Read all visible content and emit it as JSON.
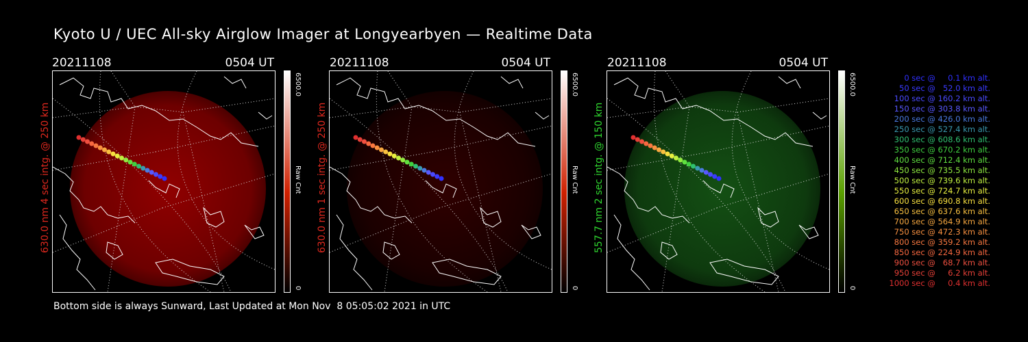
{
  "title": "Kyoto U / UEC All-sky Airglow Imager at Longyearbyen — Realtime Data",
  "footer": "Bottom side is always Sunward, Last Updated at Mon Nov  8 05:05:02 2021 in UTC",
  "panels": [
    {
      "date": "20211108",
      "time": "0504 UT",
      "side_label": "630.0 nm 4 sec intg. @ 250 km",
      "label_color": "#e0281e",
      "colorbar_max": "6500.0",
      "colorbar_min": "0",
      "colorbar_unit": "Raw Cnt",
      "tint": "#b00000",
      "intensity": 0.62
    },
    {
      "date": "20211108",
      "time": "0504 UT",
      "side_label": "630.0 nm 1 sec intg. @ 250 km",
      "label_color": "#e0281e",
      "colorbar_max": "6500.0",
      "colorbar_min": "0",
      "colorbar_unit": "Raw Cnt",
      "tint": "#6a0000",
      "intensity": 0.25
    },
    {
      "date": "20211108",
      "time": "0504 UT",
      "side_label": "557.7 nm 2 sec intg. @ 150 km",
      "label_color": "#2fd62f",
      "colorbar_max": "6500.0",
      "colorbar_min": "0",
      "colorbar_unit": "Raw Cnt",
      "tint": "#1a6a1a",
      "intensity": 0.55
    }
  ],
  "legend": [
    {
      "text": "   0 sec @     0.1 km alt.",
      "color": "#3030ff"
    },
    {
      "text": "  50 sec @   52.0 km alt.",
      "color": "#3a3aff"
    },
    {
      "text": " 100 sec @ 160.2 km alt.",
      "color": "#4a4aff"
    },
    {
      "text": " 150 sec @ 303.8 km alt.",
      "color": "#5858ff"
    },
    {
      "text": " 200 sec @ 426.0 km alt.",
      "color": "#4a7ae0"
    },
    {
      "text": " 250 sec @ 527.4 km alt.",
      "color": "#3a9ab0"
    },
    {
      "text": " 300 sec @ 608.6 km alt.",
      "color": "#30c070"
    },
    {
      "text": " 350 sec @ 670.2 km alt.",
      "color": "#40d040"
    },
    {
      "text": " 400 sec @ 712.4 km alt.",
      "color": "#60e040"
    },
    {
      "text": " 450 sec @ 735.5 km alt.",
      "color": "#90ea40"
    },
    {
      "text": " 500 sec @ 739.6 km alt.",
      "color": "#c0f040"
    },
    {
      "text": " 550 sec @ 724.7 km alt.",
      "color": "#e8f040"
    },
    {
      "text": " 600 sec @ 690.8 km alt.",
      "color": "#f8e040"
    },
    {
      "text": " 650 sec @ 637.6 km alt.",
      "color": "#f8c040"
    },
    {
      "text": " 700 sec @ 564.9 km alt.",
      "color": "#f8a840"
    },
    {
      "text": " 750 sec @ 472.3 km alt.",
      "color": "#f89040"
    },
    {
      "text": " 800 sec @ 359.2 km alt.",
      "color": "#f87840"
    },
    {
      "text": " 850 sec @ 224.9 km alt.",
      "color": "#f86840"
    },
    {
      "text": " 900 sec @   68.7 km alt.",
      "color": "#f05040"
    },
    {
      "text": " 950 sec @     6.2 km alt.",
      "color": "#e84038"
    },
    {
      "text": "1000 sec @     0.4 km alt.",
      "color": "#e03030"
    }
  ]
}
